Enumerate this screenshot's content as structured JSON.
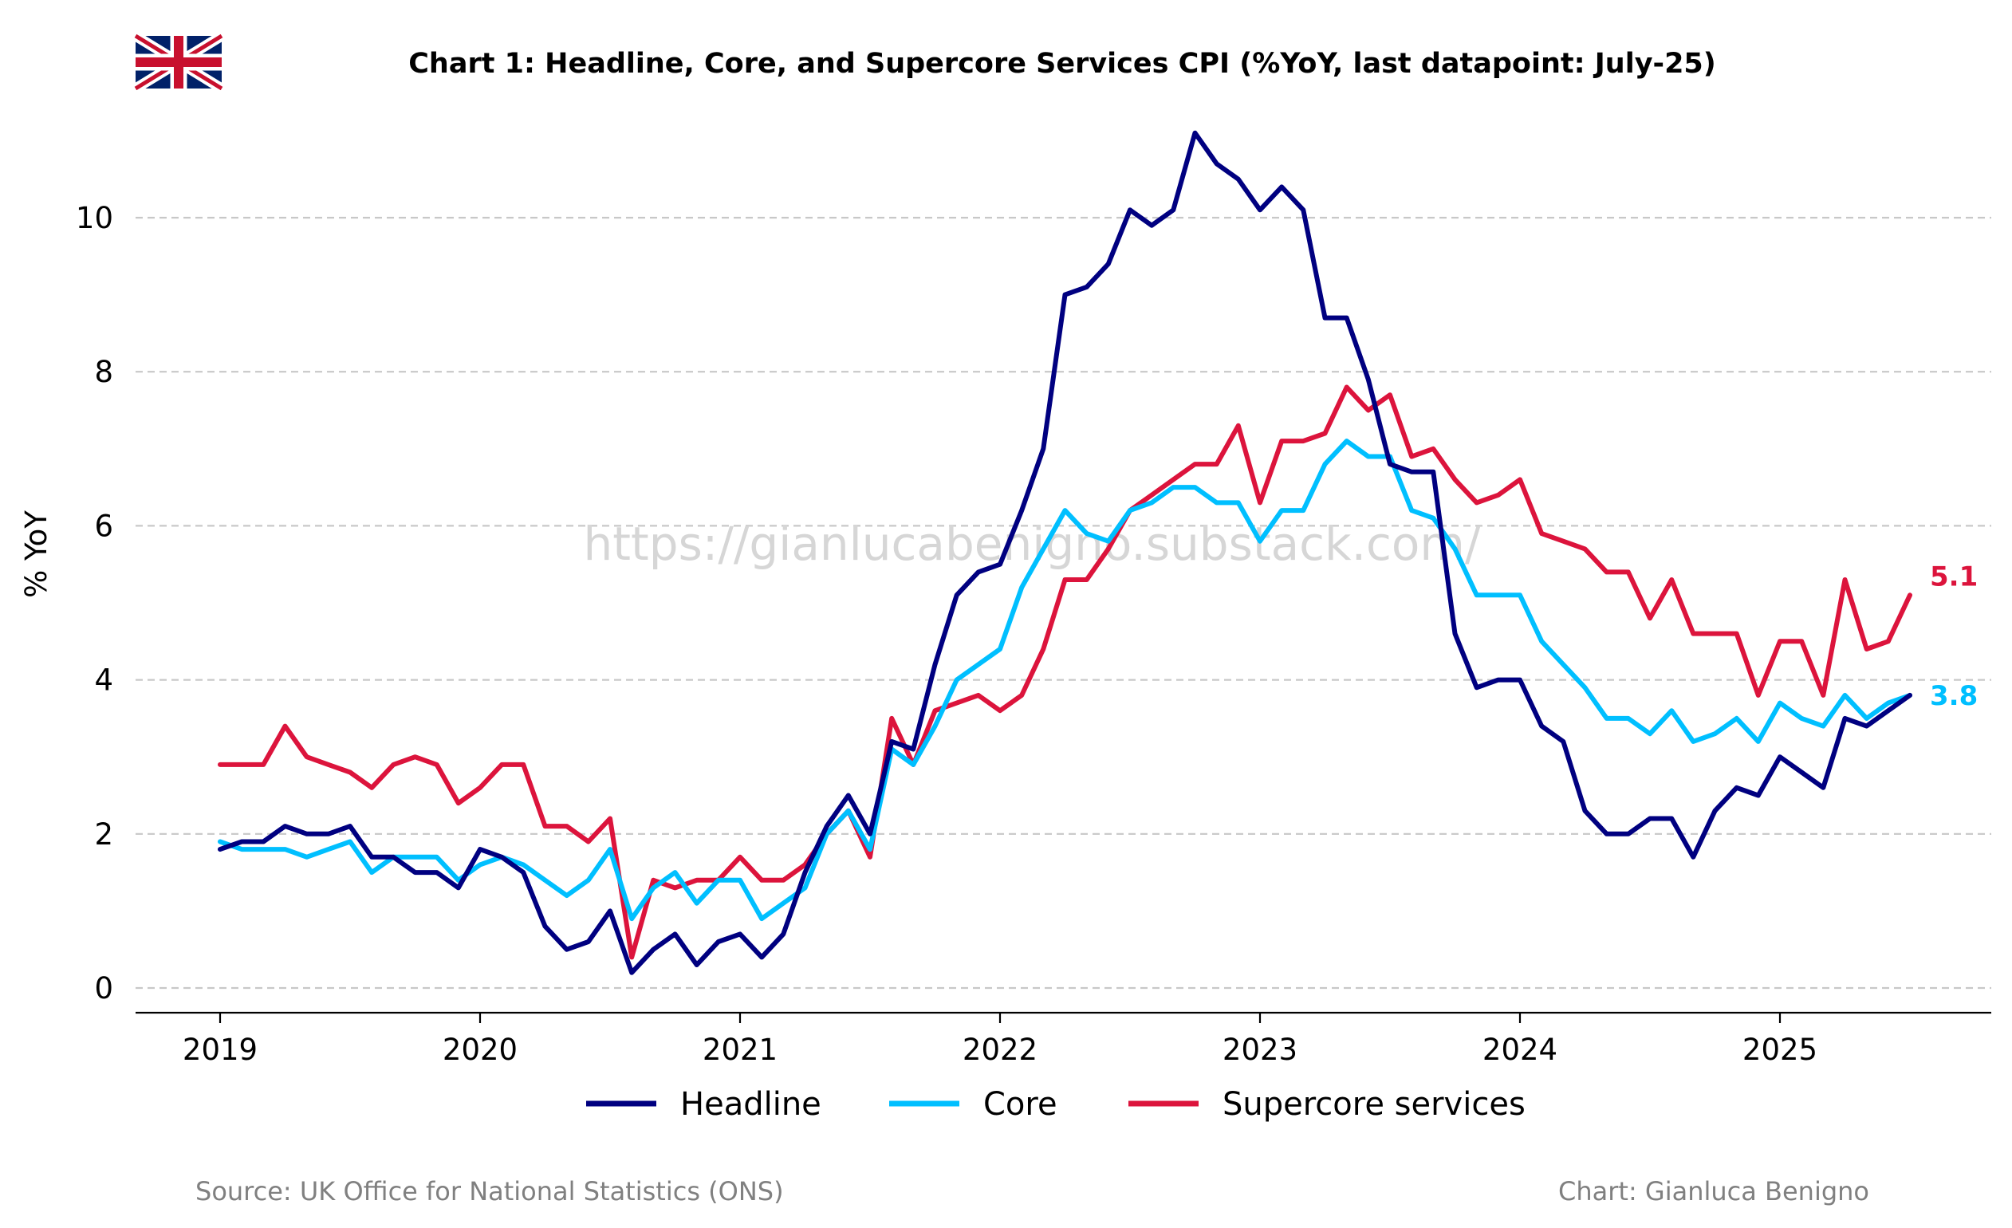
{
  "chart_data": {
    "type": "line",
    "title": "Chart 1: Headline, Core, and Supercore Services CPI (%YoY, last datapoint: July-25)",
    "ylabel": "% YoY",
    "xlabel": "",
    "ylim": [
      -0.35,
      11.45
    ],
    "yticks": [
      0,
      2,
      4,
      6,
      8,
      10
    ],
    "xticks": [
      2019,
      2020,
      2021,
      2022,
      2023,
      2024,
      2025
    ],
    "grid": "horizontal dashed",
    "legend": "bottom-center",
    "watermark": "https://gianlucabenigno.substack.com/",
    "source": "Source: UK Office for National Statistics (ONS)",
    "credit": "Chart: Gianluca Benigno",
    "start": "2019-01",
    "series": [
      {
        "name": "Headline",
        "color": "#000080",
        "end_label": "",
        "values": [
          1.8,
          1.9,
          1.9,
          2.1,
          2.0,
          2.0,
          2.1,
          1.7,
          1.7,
          1.5,
          1.5,
          1.3,
          1.8,
          1.7,
          1.5,
          0.8,
          0.5,
          0.6,
          1.0,
          0.2,
          0.5,
          0.7,
          0.3,
          0.6,
          0.7,
          0.4,
          0.7,
          1.5,
          2.1,
          2.5,
          2.0,
          3.2,
          3.1,
          4.2,
          5.1,
          5.4,
          5.5,
          6.2,
          7.0,
          9.0,
          9.1,
          9.4,
          10.1,
          9.9,
          10.1,
          11.1,
          10.7,
          10.5,
          10.1,
          10.4,
          10.1,
          8.7,
          8.7,
          7.9,
          6.8,
          6.7,
          6.7,
          4.6,
          3.9,
          4.0,
          4.0,
          3.4,
          3.2,
          2.3,
          2.0,
          2.0,
          2.2,
          2.2,
          1.7,
          2.3,
          2.6,
          2.5,
          3.0,
          2.8,
          2.6,
          3.5,
          3.4,
          3.6,
          3.8
        ]
      },
      {
        "name": "Core",
        "color": "#00bfff",
        "end_label": "3.8",
        "values": [
          1.9,
          1.8,
          1.8,
          1.8,
          1.7,
          1.8,
          1.9,
          1.5,
          1.7,
          1.7,
          1.7,
          1.4,
          1.6,
          1.7,
          1.6,
          1.4,
          1.2,
          1.4,
          1.8,
          0.9,
          1.3,
          1.5,
          1.1,
          1.4,
          1.4,
          0.9,
          1.1,
          1.3,
          2.0,
          2.3,
          1.8,
          3.1,
          2.9,
          3.4,
          4.0,
          4.2,
          4.4,
          5.2,
          5.7,
          6.2,
          5.9,
          5.8,
          6.2,
          6.3,
          6.5,
          6.5,
          6.3,
          6.3,
          5.8,
          6.2,
          6.2,
          6.8,
          7.1,
          6.9,
          6.9,
          6.2,
          6.1,
          5.7,
          5.1,
          5.1,
          5.1,
          4.5,
          4.2,
          3.9,
          3.5,
          3.5,
          3.3,
          3.6,
          3.2,
          3.3,
          3.5,
          3.2,
          3.7,
          3.5,
          3.4,
          3.8,
          3.5,
          3.7,
          3.8
        ]
      },
      {
        "name": "Supercore services",
        "color": "#dc143c",
        "end_label": "5.1",
        "values": [
          2.9,
          2.9,
          2.9,
          3.4,
          3.0,
          2.9,
          2.8,
          2.6,
          2.9,
          3.0,
          2.9,
          2.4,
          2.6,
          2.9,
          2.9,
          2.1,
          2.1,
          1.9,
          2.2,
          0.4,
          1.4,
          1.3,
          1.4,
          1.4,
          1.7,
          1.4,
          1.4,
          1.6,
          2.0,
          2.3,
          1.7,
          3.5,
          2.9,
          3.6,
          3.7,
          3.8,
          3.6,
          3.8,
          4.4,
          5.3,
          5.3,
          5.7,
          6.2,
          6.4,
          6.6,
          6.8,
          6.8,
          7.3,
          6.3,
          7.1,
          7.1,
          7.2,
          7.8,
          7.5,
          7.7,
          6.9,
          7.0,
          6.6,
          6.3,
          6.4,
          6.6,
          5.9,
          5.8,
          5.7,
          5.4,
          5.4,
          4.8,
          5.3,
          4.6,
          4.6,
          4.6,
          3.8,
          4.5,
          4.5,
          3.8,
          5.3,
          4.4,
          4.5,
          5.1
        ]
      }
    ]
  }
}
